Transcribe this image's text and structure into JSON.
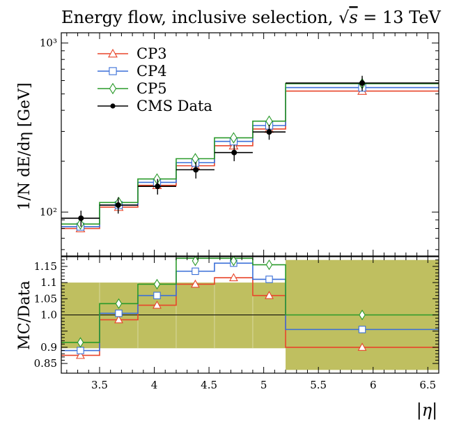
{
  "chart_data": [
    {
      "type": "line",
      "title": "Energy flow, inclusive selection, √s = 13 TeV",
      "ylabel": "1/N dE/dη [GeV]",
      "yscale": "log",
      "xlim": [
        3.15,
        6.6
      ],
      "ylim": [
        55,
        1150
      ],
      "y_tick_labels": [
        "10²",
        "10³"
      ],
      "y_tick_values": [
        100,
        1000
      ],
      "legend_placement": "top-left",
      "bin_edges": [
        3.15,
        3.5,
        3.85,
        4.2,
        4.55,
        4.9,
        5.2,
        6.6
      ],
      "series": [
        {
          "name": "CP3",
          "color": "#e8452a",
          "marker": "triangle",
          "values": [
            80,
            107,
            144,
            188,
            247,
            310,
            520
          ]
        },
        {
          "name": "CP4",
          "color": "#3a6fd8",
          "marker": "square",
          "values": [
            82,
            110,
            150,
            196,
            262,
            325,
            545
          ]
        },
        {
          "name": "CP5",
          "color": "#2a9a2a",
          "marker": "diamond",
          "values": [
            85,
            114,
            157,
            207,
            275,
            345,
            575
          ]
        },
        {
          "name": "CMS Data",
          "color": "#000000",
          "marker": "dot",
          "x": [
            3.33,
            3.67,
            4.03,
            4.38,
            4.73,
            5.05,
            5.9
          ],
          "values": [
            92,
            110,
            142,
            178,
            225,
            298,
            580
          ],
          "err_low": [
            10,
            12,
            15,
            20,
            25,
            30,
            60
          ],
          "err_high": [
            10,
            12,
            15,
            20,
            25,
            30,
            60
          ]
        }
      ]
    },
    {
      "type": "line",
      "ylabel": "MC/Data",
      "xlabel": "|η|",
      "xlim": [
        3.15,
        6.6
      ],
      "ylim": [
        0.82,
        1.18
      ],
      "x_ticks": [
        3.5,
        4,
        4.5,
        5,
        5.5,
        6,
        6.5
      ],
      "x_tick_labels": [
        "3.5",
        "4",
        "4.5",
        "5",
        "5.5",
        "6",
        "6.5"
      ],
      "y_ticks": [
        0.85,
        0.9,
        1.0,
        1.05,
        1.1,
        1.15
      ],
      "y_tick_labels": [
        "0.85",
        "0.9",
        "1.0",
        "1.05",
        "1.1",
        "1.15"
      ],
      "reference_line": 1.0,
      "uncertainty_band_color": "#bfbf60",
      "uncertainty_band": [
        {
          "x0": 3.15,
          "x1": 5.2,
          "low": 0.897,
          "high": 1.1
        },
        {
          "x0": 5.2,
          "x1": 6.6,
          "low": 0.83,
          "high": 1.17
        }
      ],
      "bin_edges": [
        3.15,
        3.5,
        3.85,
        4.2,
        4.55,
        4.9,
        5.2,
        6.6
      ],
      "series": [
        {
          "name": "CP3",
          "color": "#e8452a",
          "values": [
            0.875,
            0.985,
            1.03,
            1.095,
            1.115,
            1.06,
            0.9
          ]
        },
        {
          "name": "CP4",
          "color": "#3a6fd8",
          "values": [
            0.89,
            1.005,
            1.06,
            1.135,
            1.16,
            1.11,
            0.955
          ]
        },
        {
          "name": "CP5",
          "color": "#2a9a2a",
          "values": [
            0.915,
            1.035,
            1.095,
            1.175,
            1.175,
            1.155,
            1.0
          ]
        }
      ]
    }
  ]
}
